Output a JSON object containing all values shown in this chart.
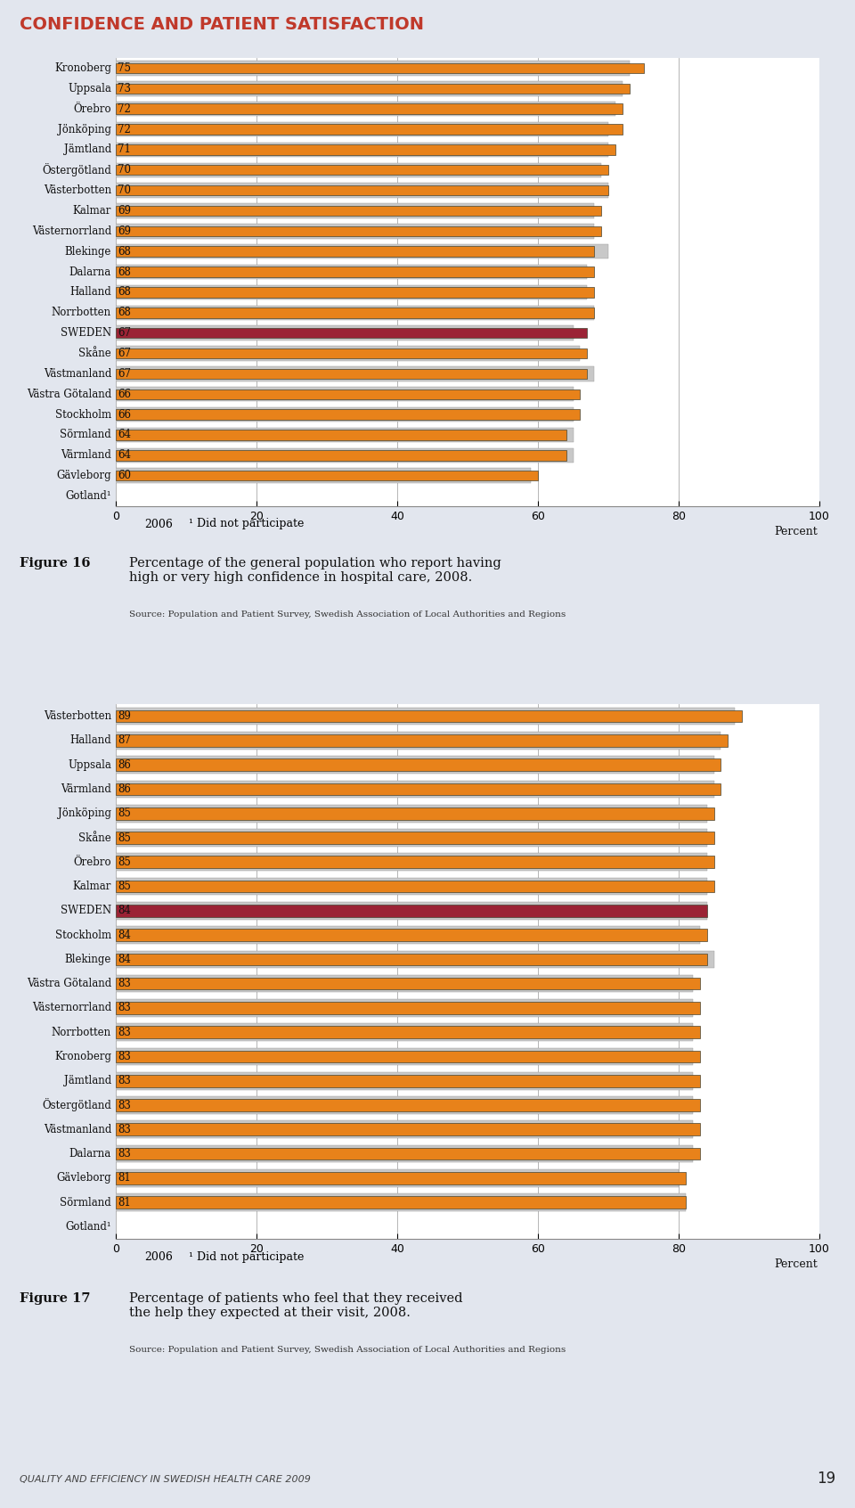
{
  "title": "CONFIDENCE AND PATIENT SATISFACTION",
  "title_color": "#C0392B",
  "bg_color": "#E2E6EE",
  "chart_bg": "#FFFFFF",
  "chart1": {
    "categories": [
      "Kronoberg",
      "Uppsala",
      "Örebro",
      "Jönköping",
      "Jämtland",
      "Östergötland",
      "Västerbotten",
      "Kalmar",
      "Västernorrland",
      "Blekinge",
      "Dalarna",
      "Halland",
      "Norrbotten",
      "SWEDEN",
      "Skåne",
      "Västmanland",
      "Västra Götaland",
      "Stockholm",
      "Sörmland",
      "Värmland",
      "Gävleborg",
      "Gotland¹"
    ],
    "values_2008": [
      75,
      73,
      72,
      72,
      71,
      70,
      70,
      69,
      69,
      68,
      68,
      68,
      68,
      67,
      67,
      67,
      66,
      66,
      64,
      64,
      60,
      null
    ],
    "values_2006": [
      73,
      72,
      71,
      70,
      70,
      69,
      70,
      68,
      68,
      70,
      67,
      67,
      68,
      65,
      66,
      68,
      65,
      65,
      65,
      65,
      59,
      null
    ],
    "sweden_idx": 13,
    "figure_label": "Figure 16",
    "figure_text": "Percentage of the general population who report having\nhigh or very high confidence in hospital care, 2008.",
    "source_text": "Source: Population and Patient Survey, Swedish Association of Local Authorities and Regions"
  },
  "chart2": {
    "categories": [
      "Västerbotten",
      "Halland",
      "Uppsala",
      "Värmland",
      "Jönköping",
      "Skåne",
      "Örebro",
      "Kalmar",
      "SWEDEN",
      "Stockholm",
      "Blekinge",
      "Västra Götaland",
      "Västernorrland",
      "Norrbotten",
      "Kronoberg",
      "Jämtland",
      "Östergötland",
      "Västmanland",
      "Dalarna",
      "Gävleborg",
      "Sörmland",
      "Gotland¹"
    ],
    "values_2008": [
      89,
      87,
      86,
      86,
      85,
      85,
      85,
      85,
      84,
      84,
      84,
      83,
      83,
      83,
      83,
      83,
      83,
      83,
      83,
      81,
      81,
      null
    ],
    "values_2006": [
      88,
      86,
      85,
      85,
      84,
      84,
      84,
      84,
      84,
      83,
      85,
      82,
      82,
      82,
      82,
      82,
      82,
      82,
      82,
      80,
      81,
      null
    ],
    "sweden_idx": 8,
    "figure_label": "Figure 17",
    "figure_text": "Percentage of patients who feel that they received\nthe help they expected at their visit, 2008.",
    "source_text": "Source: Population and Patient Survey, Swedish Association of Local Authorities and Regions"
  },
  "bar_color_orange": "#E8821A",
  "bar_color_gray": "#C8C8C8",
  "bar_color_sweden": "#9B2335",
  "legend_label_gray": "2006",
  "legend_label_note": "¹ Did not participate",
  "footer_text": "QUALITY AND EFFICIENCY IN SWEDISH HEALTH CARE 2009",
  "footer_page": "19"
}
